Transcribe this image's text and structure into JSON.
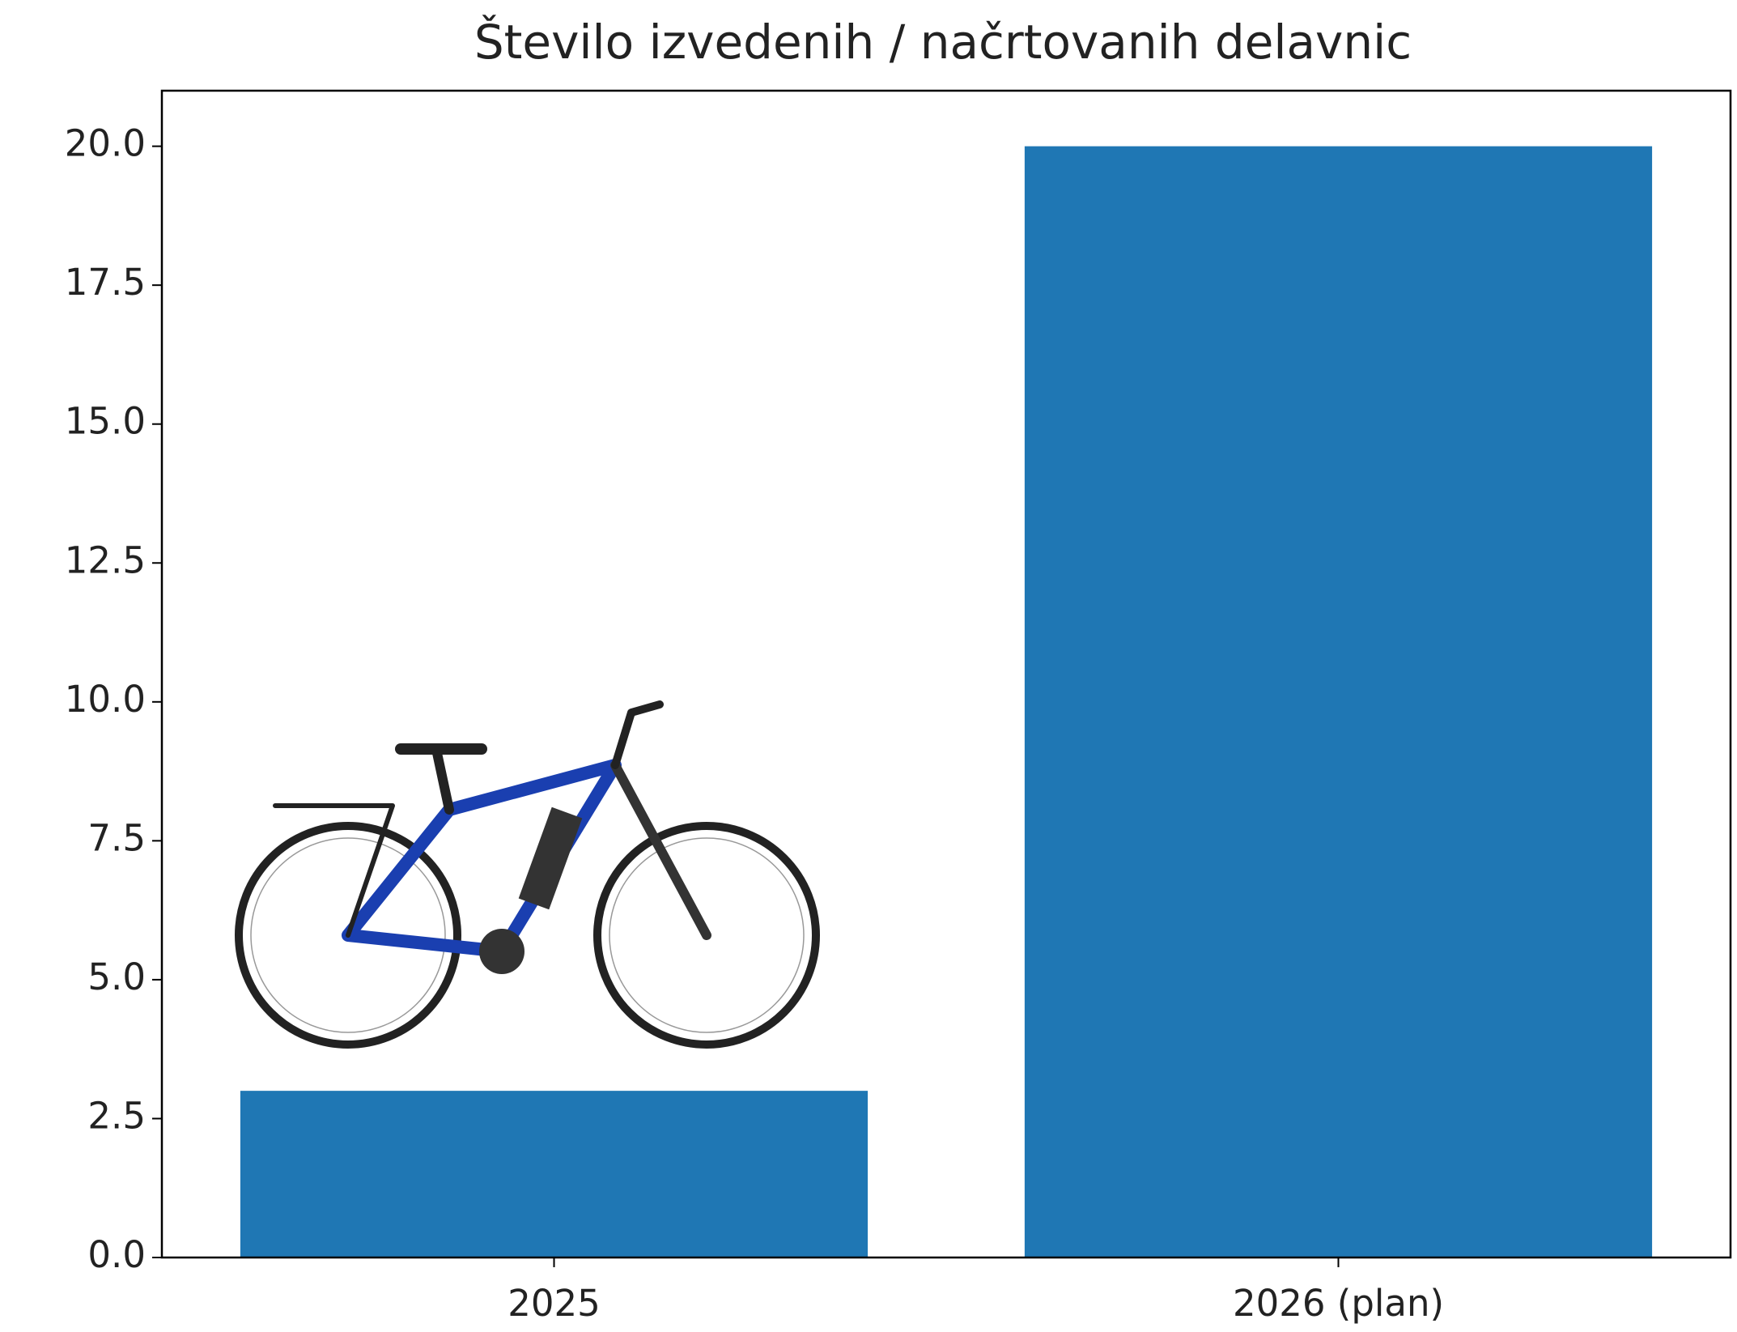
{
  "chart_data": {
    "type": "bar",
    "title": "Število izvedenih / načrtovanih delavnic",
    "categories": [
      "2025",
      "2026 (plan)"
    ],
    "values": [
      3,
      20
    ],
    "color": "#1f77b4",
    "ylim": [
      0,
      21
    ],
    "yticks": [
      {
        "value": 0,
        "label": "0.0"
      },
      {
        "value": 2.5,
        "label": "2.5"
      },
      {
        "value": 5,
        "label": "5.0"
      },
      {
        "value": 7.5,
        "label": "7.5"
      },
      {
        "value": 10,
        "label": "10.0"
      },
      {
        "value": 12.5,
        "label": "12.5"
      },
      {
        "value": 15,
        "label": "15.0"
      },
      {
        "value": 17.5,
        "label": "17.5"
      },
      {
        "value": 20,
        "label": "20.0"
      }
    ],
    "grid": false
  }
}
